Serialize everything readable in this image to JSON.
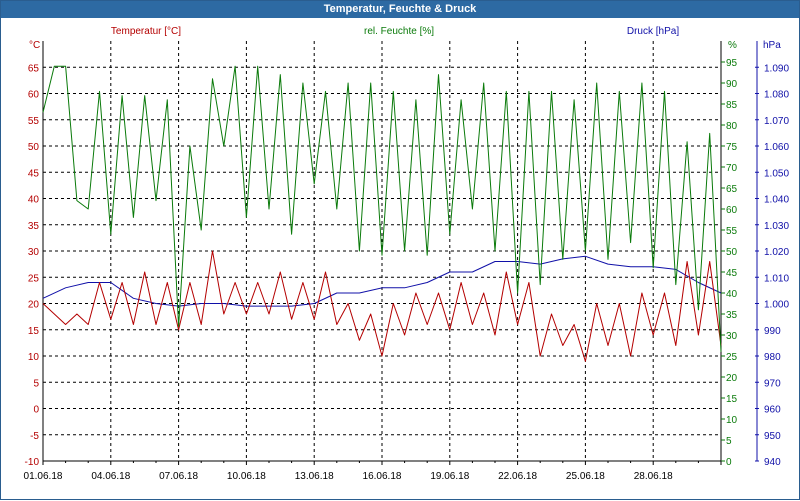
{
  "window": {
    "title": "Temperatur, Feuchte & Druck"
  },
  "colors": {
    "temperature": "#b40000",
    "humidity": "#0a7a0a",
    "pressure": "#1010a8",
    "grid": "#000000",
    "titlebar": "#2d6aa3"
  },
  "chart_data": {
    "type": "line",
    "title": "Temperatur, Feuchte & Druck",
    "x_tick_labels": [
      "01.06.18",
      "04.06.18",
      "07.06.18",
      "10.06.18",
      "13.06.18",
      "16.06.18",
      "19.06.18",
      "22.06.18",
      "25.06.18",
      "28.06.18"
    ],
    "x_range_days": [
      0,
      30
    ],
    "axes": {
      "left": {
        "label": "Temperatur [°C]",
        "unit": "°C",
        "range": [
          -10,
          70
        ],
        "ticks": [
          -10,
          -5,
          0,
          5,
          10,
          15,
          20,
          25,
          30,
          35,
          40,
          45,
          50,
          55,
          60,
          65
        ]
      },
      "right1": {
        "label": "rel. Feuchte [%]",
        "unit": "%",
        "range": [
          0,
          100
        ],
        "ticks": [
          0,
          5,
          10,
          15,
          20,
          25,
          30,
          35,
          40,
          45,
          50,
          55,
          60,
          65,
          70,
          75,
          80,
          85,
          90,
          95
        ]
      },
      "right2": {
        "label": "Druck [hPa]",
        "unit": "hPa",
        "range": [
          940,
          1100
        ],
        "ticks": [
          940,
          950,
          960,
          970,
          980,
          990,
          1000,
          1010,
          1020,
          1030,
          1040,
          1050,
          1060,
          1070,
          1080,
          1090
        ],
        "tick_labels": [
          "940",
          "950",
          "960",
          "970",
          "980",
          "990",
          "1.000",
          "1.010",
          "1.020",
          "1.030",
          "1.040",
          "1.050",
          "1.060",
          "1.070",
          "1.080",
          "1.090"
        ]
      }
    },
    "series": [
      {
        "name": "Temperatur [°C]",
        "axis": "left",
        "x": [
          0,
          0.5,
          1,
          1.5,
          2,
          2.5,
          3,
          3.5,
          4,
          4.5,
          5,
          5.5,
          6,
          6.5,
          7,
          7.5,
          8,
          8.5,
          9,
          9.5,
          10,
          10.5,
          11,
          11.5,
          12,
          12.5,
          13,
          13.5,
          14,
          14.5,
          15,
          15.5,
          16,
          16.5,
          17,
          17.5,
          18,
          18.5,
          19,
          19.5,
          20,
          20.5,
          21,
          21.5,
          22,
          22.5,
          23,
          23.5,
          24,
          24.5,
          25,
          25.5,
          26,
          26.5,
          27,
          27.5,
          28,
          28.5,
          29,
          29.5,
          30
        ],
        "values": [
          20,
          18,
          16,
          18,
          16,
          24,
          17,
          24,
          16,
          26,
          16,
          24,
          15,
          24,
          16,
          30,
          18,
          24,
          18,
          24,
          18,
          26,
          17,
          24,
          17,
          26,
          16,
          20,
          13,
          18,
          10,
          20,
          14,
          22,
          16,
          22,
          15,
          24,
          16,
          22,
          14,
          26,
          16,
          24,
          10,
          18,
          12,
          16,
          9,
          20,
          12,
          20,
          10,
          22,
          14,
          22,
          12,
          28,
          14,
          28,
          12
        ]
      },
      {
        "name": "rel. Feuchte [%]",
        "axis": "right1",
        "x": [
          0,
          0.5,
          1,
          1.5,
          2,
          2.5,
          3,
          3.5,
          4,
          4.5,
          5,
          5.5,
          6,
          6.5,
          7,
          7.5,
          8,
          8.5,
          9,
          9.5,
          10,
          10.5,
          11,
          11.5,
          12,
          12.5,
          13,
          13.5,
          14,
          14.5,
          15,
          15.5,
          16,
          16.5,
          17,
          17.5,
          18,
          18.5,
          19,
          19.5,
          20,
          20.5,
          21,
          21.5,
          22,
          22.5,
          23,
          23.5,
          24,
          24.5,
          25,
          25.5,
          26,
          26.5,
          27,
          27.5,
          28,
          28.5,
          29,
          29.5,
          30
        ],
        "values": [
          83,
          94,
          94,
          62,
          60,
          88,
          54,
          87,
          58,
          87,
          62,
          86,
          32,
          75,
          55,
          91,
          75,
          94,
          58,
          94,
          60,
          92,
          54,
          90,
          66,
          88,
          60,
          90,
          50,
          90,
          49,
          88,
          50,
          86,
          49,
          92,
          54,
          86,
          60,
          90,
          50,
          88,
          40,
          88,
          42,
          88,
          48,
          86,
          50,
          90,
          48,
          88,
          52,
          90,
          46,
          88,
          42,
          76,
          36,
          78,
          26
        ]
      },
      {
        "name": "Druck [hPa]",
        "axis": "right2",
        "x": [
          0,
          1,
          2,
          3,
          4,
          5,
          6,
          7,
          8,
          9,
          10,
          11,
          12,
          13,
          14,
          15,
          16,
          17,
          18,
          19,
          20,
          21,
          22,
          23,
          24,
          25,
          26,
          27,
          28,
          29,
          30
        ],
        "values": [
          1002,
          1006,
          1008,
          1008,
          1002,
          1000,
          999,
          1000,
          1000,
          999,
          999,
          999,
          1000,
          1004,
          1004,
          1006,
          1006,
          1008,
          1012,
          1012,
          1016,
          1016,
          1015,
          1017,
          1018,
          1015,
          1014,
          1014,
          1013,
          1008,
          1004
        ]
      }
    ]
  }
}
